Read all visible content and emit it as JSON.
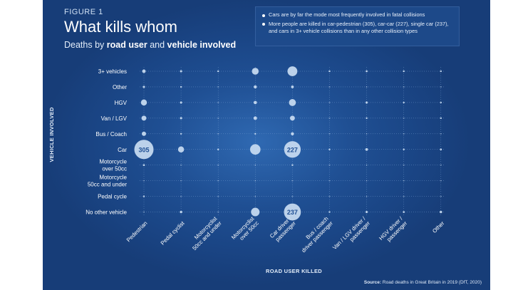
{
  "figure_label": "FIGURE 1",
  "title": "What kills whom",
  "subtitle": {
    "prefix": "Deaths by ",
    "bold1": "road user",
    "middle": " and ",
    "bold2": "vehicle involved"
  },
  "notes": [
    "Cars are by far the mode most frequently involved in fatal collisions",
    "More people are killed in car-pedestrian (305), car-car (227), single car (237), and cars in 3+ vehicle collisions than in any other collision types"
  ],
  "source": {
    "label": "Source:",
    "text": " Road deaths in Great Britain in 2019 (DfT, 2020)"
  },
  "colors": {
    "background": "#1f4f93",
    "bubble": "#c9dcf2",
    "grid": "#7fa6d6",
    "text": "#ffffff"
  },
  "chart_data": {
    "type": "bubble",
    "xlabel": "ROAD USER KILLED",
    "ylabel": "VEHICLE INVOLVED",
    "x_categories": [
      "Pedestrian",
      "Pedal cyclist",
      "Motorcyclist 50cc and under",
      "Motorcyclist over 50cc",
      "Car driver / passenger",
      "Bus / coach driver passenger",
      "Van / LGV driver / passenger",
      "HGV driver / passenger",
      "Other"
    ],
    "x_category_lines": [
      [
        "Pedestrian"
      ],
      [
        "Pedal cyclist"
      ],
      [
        "Motorcyclist",
        "50cc and under"
      ],
      [
        "Motorcyclist",
        "over 50cc"
      ],
      [
        "Car driver /",
        "passenger"
      ],
      [
        "Bus / coach",
        "driver passenger"
      ],
      [
        "Van / LGV driver /",
        "passenger"
      ],
      [
        "HGV driver /",
        "passenger"
      ],
      [
        "Other"
      ]
    ],
    "y_categories": [
      "3+ vehicles",
      "Other",
      "HGV",
      "Van / LGV",
      "Bus / Coach",
      "Car",
      "Motorcycle over 50cc",
      "Motorcycle 50cc and under",
      "Pedal cycle",
      "No other vehicle"
    ],
    "y_category_lines": [
      [
        "3+ vehicles"
      ],
      [
        "Other"
      ],
      [
        "HGV"
      ],
      [
        "Van / LGV"
      ],
      [
        "Bus / Coach"
      ],
      [
        "Car"
      ],
      [
        "Motorcycle",
        "over 50cc"
      ],
      [
        "Motorcycle",
        "50cc and under"
      ],
      [
        "Pedal cycle"
      ],
      [
        "No other vehicle"
      ]
    ],
    "values": [
      [
        10,
        4,
        1,
        38,
        80,
        1,
        3,
        1,
        1
      ],
      [
        4,
        1,
        0,
        8,
        6,
        0,
        0,
        0,
        0
      ],
      [
        30,
        4,
        0,
        9,
        40,
        0,
        4,
        2,
        1
      ],
      [
        20,
        4,
        0,
        10,
        20,
        0,
        2,
        0,
        1
      ],
      [
        15,
        1,
        0,
        2,
        8,
        0,
        0,
        0,
        0
      ],
      [
        305,
        30,
        1,
        90,
        227,
        2,
        6,
        1,
        3
      ],
      [
        3,
        0,
        0,
        0,
        1,
        0,
        0,
        0,
        0
      ],
      [
        0,
        0,
        0,
        0,
        0,
        0,
        0,
        0,
        0
      ],
      [
        2,
        0,
        0,
        0,
        0,
        0,
        0,
        0,
        0
      ],
      [
        0,
        5,
        0,
        60,
        237,
        2,
        4,
        3,
        5
      ]
    ],
    "data_labels": [
      {
        "row": 5,
        "col": 0,
        "text": "305"
      },
      {
        "row": 5,
        "col": 4,
        "text": "227"
      },
      {
        "row": 9,
        "col": 4,
        "text": "237"
      }
    ]
  }
}
